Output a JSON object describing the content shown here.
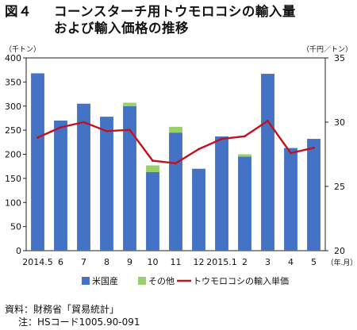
{
  "title": {
    "fig_label": "図４",
    "line1": "コーンスターチ用トウモロコシの輸入量",
    "line2": "および輸入価格の推移"
  },
  "chart_data": {
    "type": "bar",
    "categories": [
      "2014.5",
      "6",
      "7",
      "8",
      "9",
      "10",
      "11",
      "12",
      "2015.1",
      "2",
      "3",
      "4",
      "5"
    ],
    "series": [
      {
        "name": "米国産",
        "type": "bar",
        "axis": "left",
        "color": "#4472c4",
        "values": [
          368,
          270,
          305,
          278,
          300,
          163,
          245,
          170,
          237,
          195,
          367,
          213,
          232
        ]
      },
      {
        "name": "その他",
        "type": "bar-stacked",
        "axis": "left",
        "color": "#9bcf6b",
        "values": [
          0,
          0,
          0,
          0,
          7,
          14,
          12,
          0,
          0,
          5,
          0,
          0,
          0
        ]
      },
      {
        "name": "トウモロコシの輸入単価",
        "type": "line",
        "axis": "right",
        "color": "#c0121f",
        "values": [
          28.8,
          29.6,
          30.0,
          29.3,
          29.4,
          27.0,
          26.8,
          27.9,
          28.7,
          28.9,
          30.1,
          27.6,
          28.0
        ]
      }
    ],
    "y_left": {
      "label": "（千トン）",
      "min": 0,
      "max": 400,
      "ticks": [
        0,
        50,
        100,
        150,
        200,
        250,
        300,
        350,
        400
      ]
    },
    "y_right": {
      "label": "（千円／トン）",
      "min": 20,
      "max": 35,
      "ticks": [
        20,
        25,
        30,
        35
      ]
    },
    "x_unit": "（年.月）",
    "grid": false,
    "legend_position": "bottom"
  },
  "source": {
    "line1": "資料：財務省「貿易統計」",
    "line2": "注：HSコード1005.90-091"
  }
}
